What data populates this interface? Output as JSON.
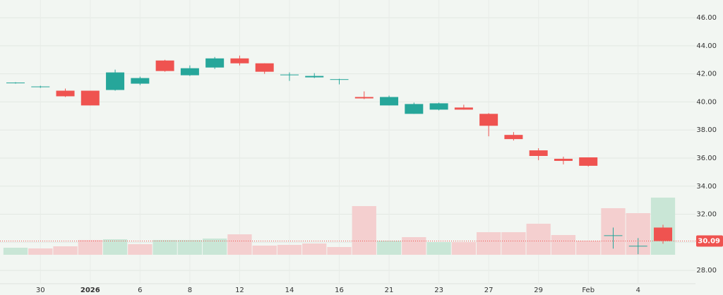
{
  "chart_data": {
    "type": "candlestick",
    "categories": [
      null,
      "30",
      null,
      "2026",
      null,
      "6",
      null,
      "8",
      null,
      "12",
      null,
      "14",
      null,
      "16",
      null,
      "21",
      null,
      "23",
      null,
      "27",
      null,
      "29",
      null,
      "Feb",
      null,
      "4",
      null
    ],
    "open": [
      41.35,
      41.05,
      40.8,
      40.8,
      40.85,
      41.3,
      42.95,
      41.9,
      42.45,
      43.1,
      42.75,
      41.9,
      41.75,
      41.6,
      40.35,
      39.75,
      39.15,
      39.45,
      39.6,
      39.15,
      37.65,
      36.55,
      35.95,
      36.05,
      30.45,
      29.7,
      31.05
    ],
    "high": [
      41.4,
      41.15,
      40.95,
      40.8,
      42.3,
      41.8,
      43.0,
      42.6,
      43.2,
      43.3,
      42.75,
      42.1,
      42.05,
      41.65,
      40.75,
      40.45,
      39.95,
      39.95,
      39.8,
      39.2,
      37.85,
      36.7,
      36.1,
      36.05,
      31.05,
      30.3,
      31.25
    ],
    "low": [
      41.3,
      41.0,
      40.35,
      39.75,
      40.8,
      41.2,
      42.15,
      41.85,
      42.35,
      42.6,
      42.0,
      41.5,
      41.7,
      41.25,
      40.2,
      39.75,
      39.15,
      39.4,
      39.45,
      37.55,
      37.25,
      35.85,
      35.55,
      35.4,
      29.55,
      29.15,
      29.9
    ],
    "close": [
      41.38,
      41.1,
      40.4,
      39.75,
      42.1,
      41.7,
      42.2,
      42.4,
      43.1,
      42.75,
      42.15,
      41.95,
      41.85,
      41.62,
      40.25,
      40.35,
      39.85,
      39.9,
      39.45,
      38.3,
      37.35,
      36.15,
      35.8,
      35.45,
      30.5,
      29.75,
      30.09
    ],
    "volume": [
      10,
      9,
      12,
      21,
      22,
      15,
      21,
      21,
      23,
      29,
      13,
      14,
      16,
      11,
      69,
      20,
      25,
      18,
      18,
      32,
      32,
      44,
      28,
      20,
      66,
      59,
      81
    ],
    "volume_colors": [
      "#c9e6d6",
      "#f4cfcf",
      "#f4cfcf",
      "#f4cfcf",
      "#c9e6d6",
      "#f4cfcf",
      "#c9e6d6",
      "#c9e6d6",
      "#c9e6d6",
      "#f4cfcf",
      "#f4cfcf",
      "#f4cfcf",
      "#f4cfcf",
      "#f4cfcf",
      "#f4cfcf",
      "#c9e6d6",
      "#f4cfcf",
      "#c9e6d6",
      "#f4cfcf",
      "#f4cfcf",
      "#f4cfcf",
      "#f4cfcf",
      "#f4cfcf",
      "#f4cfcf",
      "#f4cfcf",
      "#f4cfcf",
      "#c9e6d6"
    ],
    "up_color": "#26a69a",
    "down_color": "#ef5350",
    "last_price": 30.09,
    "ylim": [
      27.05,
      47.26
    ],
    "yticks": [
      {
        "value": 28,
        "label": "28.00"
      },
      {
        "value": 30,
        "label": "30.00"
      },
      {
        "value": 32,
        "label": "32.00"
      },
      {
        "value": 34,
        "label": "34.00"
      },
      {
        "value": 36,
        "label": "36.00"
      },
      {
        "value": 38,
        "label": "38.00"
      },
      {
        "value": 40,
        "label": "40.00"
      },
      {
        "value": 42,
        "label": "42.00"
      },
      {
        "value": 44,
        "label": "44.00"
      },
      {
        "value": 46,
        "label": "46.00"
      }
    ],
    "grid": true
  }
}
